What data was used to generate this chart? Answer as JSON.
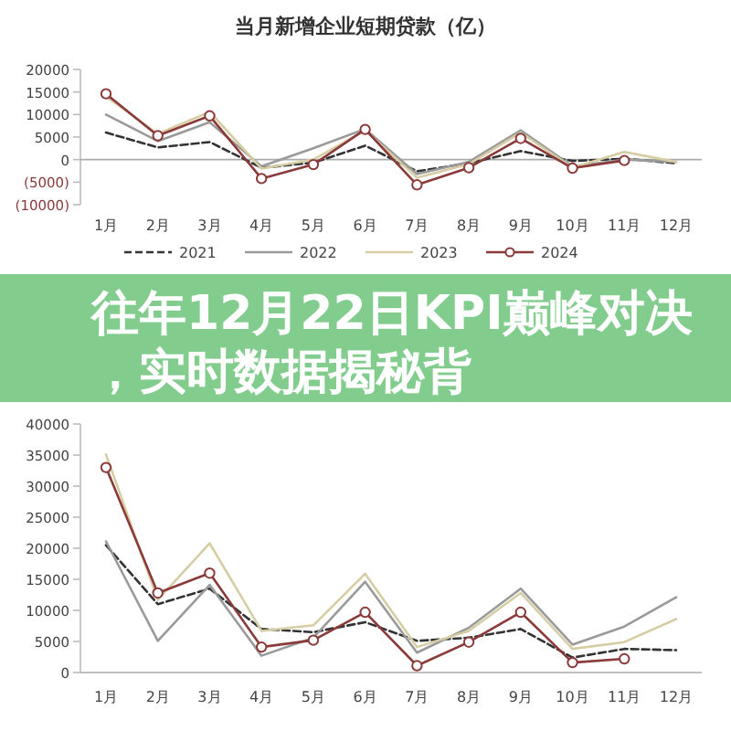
{
  "chart_data": [
    {
      "type": "line",
      "title": "当月新增企业短期贷款（亿）",
      "categories": [
        "1月",
        "2月",
        "3月",
        "4月",
        "5月",
        "6月",
        "7月",
        "8月",
        "9月",
        "10月",
        "11月",
        "12月"
      ],
      "series": [
        {
          "name": "2021",
          "color": "#333333",
          "line_style": "dashed",
          "values": [
            6000,
            2700,
            3900,
            -1800,
            -700,
            3100,
            -2600,
            -800,
            1900,
            -300,
            200,
            -800
          ]
        },
        {
          "name": "2022",
          "color": "#9a9a9a",
          "values": [
            10000,
            4100,
            8300,
            -1500,
            2500,
            6800,
            -3200,
            -500,
            6500,
            -1500,
            0,
            -500
          ]
        },
        {
          "name": "2023",
          "color": "#d6cda4",
          "values": [
            14000,
            5700,
            10600,
            -2000,
            0,
            6500,
            -4000,
            -1000,
            6000,
            -1800,
            1700,
            -500
          ]
        },
        {
          "name": "2024",
          "color": "#8b3a3a",
          "marker": "circle",
          "values": [
            14600,
            5300,
            9700,
            -4200,
            -1100,
            6700,
            -5600,
            -1800,
            4700,
            -1900,
            -200,
            null
          ]
        }
      ],
      "ylim": [
        -10000,
        20000
      ],
      "yticks": [
        {
          "value": -10000,
          "label": "(10000)"
        },
        {
          "value": -5000,
          "label": "(5000)"
        },
        0,
        5000,
        10000,
        15000,
        20000
      ],
      "legend": "bottom"
    },
    {
      "type": "other",
      "annotations": [
        "往年12月22日KPI巅峰对决，实时数据揭秘背"
      ]
    },
    {
      "type": "line",
      "categories": [
        "1月",
        "2月",
        "3月",
        "4月",
        "5月",
        "6月",
        "7月",
        "8月",
        "9月",
        "10月",
        "11月",
        "12月"
      ],
      "series": [
        {
          "color": "#333333",
          "line_style": "dashed",
          "values": [
            20500,
            11000,
            13500,
            7000,
            6500,
            8100,
            5100,
            5600,
            7000,
            2400,
            3800,
            3600
          ]
        },
        {
          "color": "#9a9a9a",
          "values": [
            21100,
            5100,
            14100,
            2700,
            5600,
            14600,
            3200,
            7200,
            13500,
            4500,
            7400,
            12100
          ]
        },
        {
          "color": "#d6cda4",
          "values": [
            35100,
            11700,
            20800,
            6700,
            7600,
            15900,
            4100,
            6700,
            12800,
            3800,
            4900,
            8600
          ]
        },
        {
          "color": "#8b3a3a",
          "marker": "circle",
          "values": [
            33000,
            12800,
            16000,
            4100,
            5200,
            9700,
            1100,
            4900,
            9700,
            1600,
            2200,
            null
          ]
        }
      ],
      "ylim": [
        0,
        40000
      ],
      "yticks": [
        0,
        5000,
        10000,
        15000,
        20000,
        25000,
        30000,
        35000,
        40000
      ]
    }
  ]
}
